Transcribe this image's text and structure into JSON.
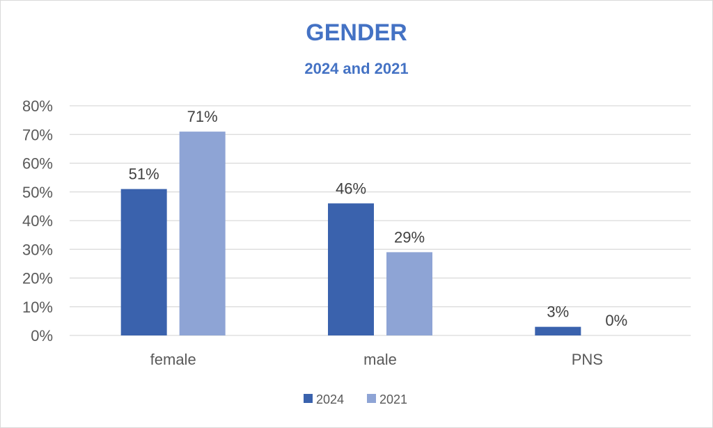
{
  "chart_data": {
    "type": "bar",
    "title": "GENDER",
    "subtitle": "2024 and 2021",
    "categories": [
      "female",
      "male",
      "PNS"
    ],
    "series": [
      {
        "name": "2024",
        "values": [
          51,
          46,
          3
        ],
        "labels": [
          "51%",
          "46%",
          "3%"
        ],
        "color": "#3A62AD"
      },
      {
        "name": "2021",
        "values": [
          71,
          29,
          0
        ],
        "labels": [
          "71%",
          "29%",
          "0%"
        ],
        "color": "#8EA4D5"
      }
    ],
    "ylim": [
      0,
      80
    ],
    "yticks": [
      "0%",
      "10%",
      "20%",
      "30%",
      "40%",
      "50%",
      "60%",
      "70%",
      "80%"
    ],
    "grid": true,
    "legend": "bottom",
    "xlabel": "",
    "ylabel": ""
  }
}
